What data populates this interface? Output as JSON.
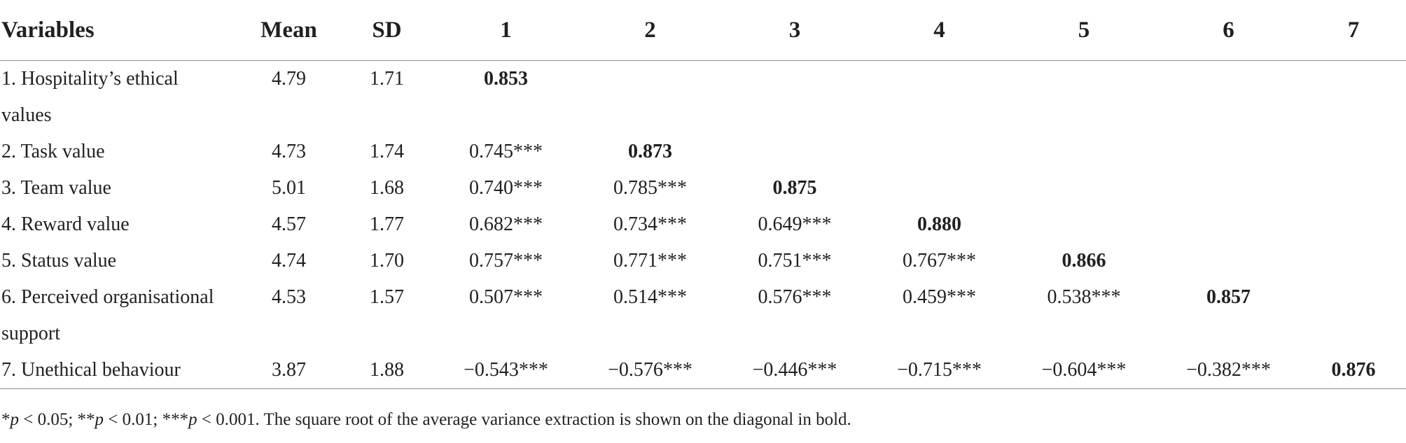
{
  "headers": [
    "Variables",
    "Mean",
    "SD",
    "1",
    "2",
    "3",
    "4",
    "5",
    "6",
    "7"
  ],
  "rows": [
    {
      "label": "1. Hospitality’s ethical",
      "label_cont": "values",
      "mean": "4.79",
      "sd": "1.71",
      "cells": [
        "0.853",
        "",
        "",
        "",
        "",
        "",
        ""
      ]
    },
    {
      "label": "2. Task value",
      "mean": "4.73",
      "sd": "1.74",
      "cells": [
        "0.745***",
        "0.873",
        "",
        "",
        "",
        "",
        ""
      ]
    },
    {
      "label": "3. Team value",
      "mean": "5.01",
      "sd": "1.68",
      "cells": [
        "0.740***",
        "0.785***",
        "0.875",
        "",
        "",
        "",
        ""
      ]
    },
    {
      "label": "4. Reward value",
      "mean": "4.57",
      "sd": "1.77",
      "cells": [
        "0.682***",
        "0.734***",
        "0.649***",
        "0.880",
        "",
        "",
        ""
      ]
    },
    {
      "label": "5. Status value",
      "mean": "4.74",
      "sd": "1.70",
      "cells": [
        "0.757***",
        "0.771***",
        "0.751***",
        "0.767***",
        "0.866",
        "",
        ""
      ]
    },
    {
      "label": "6. Perceived organisational",
      "label_cont": "support",
      "mean": "4.53",
      "sd": "1.57",
      "cells": [
        "0.507***",
        "0.514***",
        "0.576***",
        "0.459***",
        "0.538***",
        "0.857",
        ""
      ]
    },
    {
      "label": "7. Unethical behaviour",
      "mean": "3.87",
      "sd": "1.88",
      "cells": [
        "−0.543***",
        "−0.576***",
        "−0.446***",
        "−0.715***",
        "−0.604***",
        "−0.382***",
        "0.876"
      ]
    }
  ],
  "note": {
    "s1": "*",
    "p1": "p",
    "t1": " < 0.05; **",
    "p2": "p",
    "t2": " < 0.01; ***",
    "p3": "p",
    "t3": " < 0.001. The square root of the average variance extraction is shown on the diagonal in bold."
  }
}
